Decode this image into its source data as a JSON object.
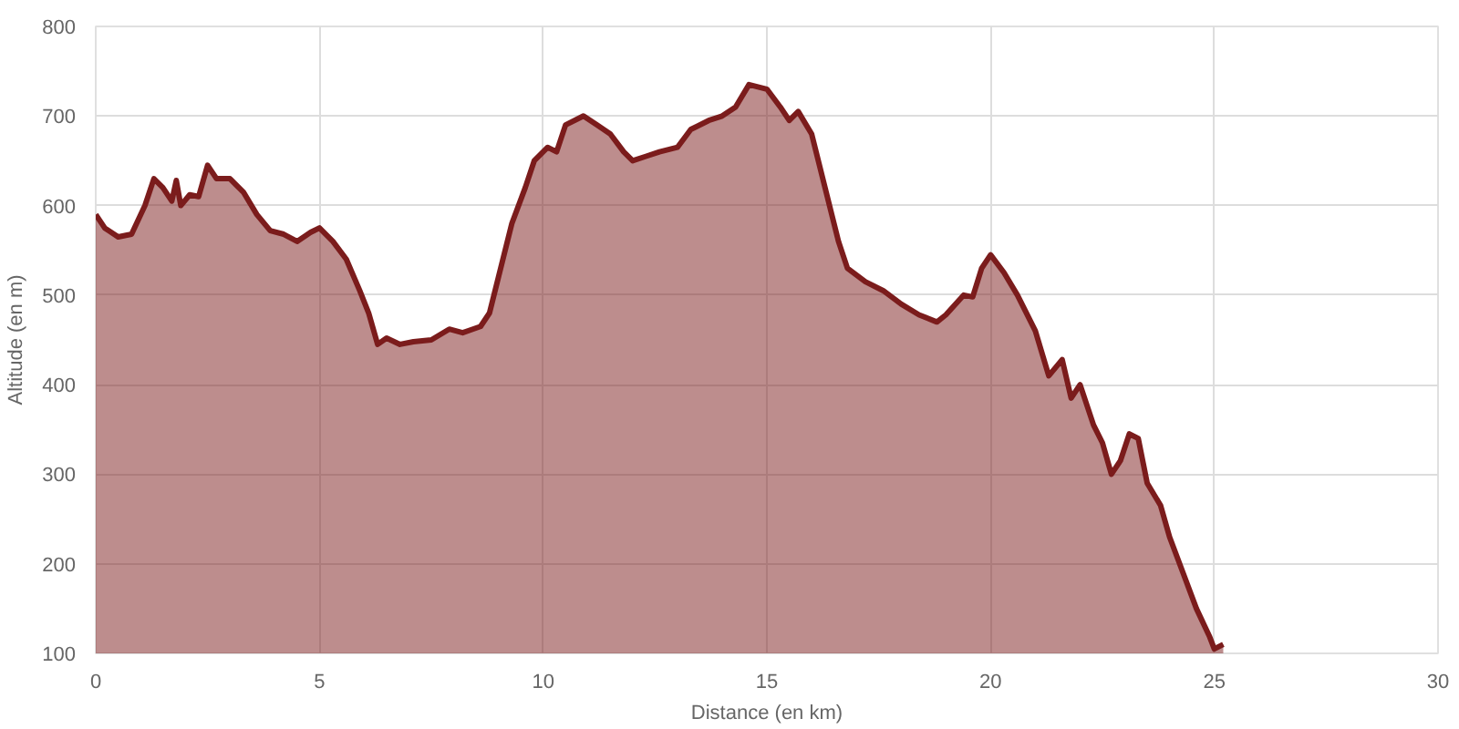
{
  "chart_data": {
    "type": "area",
    "xlabel": "Distance (en km)",
    "ylabel": "Altitude (en m)",
    "xlim": [
      0,
      30
    ],
    "ylim": [
      100,
      800
    ],
    "xticks": [
      0,
      5,
      10,
      15,
      20,
      25,
      30
    ],
    "yticks": [
      100,
      200,
      300,
      400,
      500,
      600,
      700,
      800
    ],
    "grid": true,
    "series": [
      {
        "color": "#7b1c1c",
        "x": [
          0,
          0.2,
          0.5,
          0.8,
          1.1,
          1.3,
          1.5,
          1.7,
          1.8,
          1.9,
          2.1,
          2.3,
          2.5,
          2.7,
          3.0,
          3.3,
          3.6,
          3.9,
          4.2,
          4.5,
          4.8,
          5.0,
          5.3,
          5.6,
          5.9,
          6.1,
          6.3,
          6.5,
          6.8,
          7.1,
          7.5,
          7.9,
          8.2,
          8.6,
          8.8,
          9.0,
          9.3,
          9.6,
          9.8,
          10.1,
          10.3,
          10.5,
          10.9,
          11.2,
          11.5,
          11.8,
          12.0,
          12.3,
          12.6,
          13.0,
          13.3,
          13.7,
          14.0,
          14.3,
          14.6,
          15.0,
          15.3,
          15.5,
          15.7,
          16.0,
          16.3,
          16.6,
          16.8,
          17.2,
          17.6,
          18.0,
          18.4,
          18.8,
          19.0,
          19.4,
          19.6,
          19.8,
          20.0,
          20.3,
          20.6,
          21.0,
          21.3,
          21.6,
          21.8,
          22.0,
          22.3,
          22.5,
          22.7,
          22.9,
          23.1,
          23.3,
          23.5,
          23.8,
          24.0,
          24.3,
          24.6,
          24.9,
          25.0,
          25.2
        ],
        "values": [
          590,
          575,
          565,
          568,
          600,
          630,
          620,
          605,
          628,
          600,
          612,
          610,
          645,
          630,
          630,
          615,
          590,
          572,
          568,
          560,
          570,
          575,
          560,
          540,
          505,
          480,
          445,
          452,
          445,
          448,
          450,
          462,
          458,
          465,
          480,
          520,
          580,
          620,
          650,
          665,
          660,
          690,
          700,
          690,
          680,
          660,
          650,
          655,
          660,
          665,
          685,
          695,
          700,
          710,
          735,
          730,
          710,
          695,
          705,
          680,
          620,
          560,
          530,
          515,
          505,
          490,
          478,
          470,
          478,
          500,
          498,
          530,
          545,
          525,
          500,
          460,
          410,
          428,
          385,
          400,
          355,
          335,
          300,
          315,
          345,
          340,
          290,
          265,
          230,
          190,
          150,
          118,
          105,
          110
        ]
      }
    ]
  }
}
